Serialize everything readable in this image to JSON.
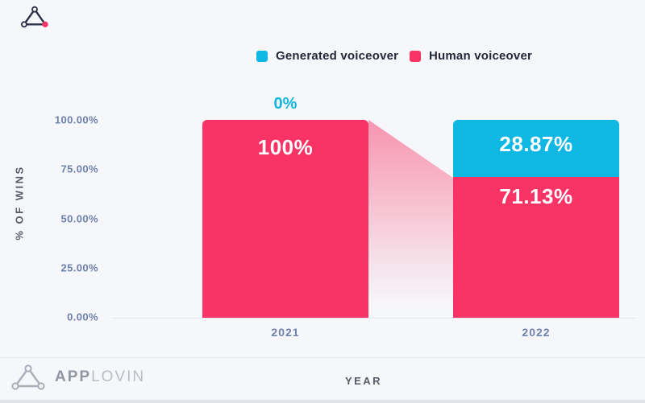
{
  "brand": {
    "footer_word_app": "APP",
    "footer_word_lovin": "LOVIN"
  },
  "legend": [
    {
      "label": "Generated voiceover",
      "color": "#0fb7e3"
    },
    {
      "label": "Human voiceover",
      "color": "#fa3366"
    }
  ],
  "y_axis": {
    "title": "% OF WINS",
    "ticks": [
      "100.00%",
      "75.00%",
      "50.00%",
      "25.00%",
      "0.00%"
    ]
  },
  "x_axis": {
    "title": "YEAR",
    "categories": [
      "2021",
      "2022"
    ]
  },
  "bar_labels": {
    "above_2021": "0%",
    "inside_2021_human": "100%",
    "inside_2022_generated": "28.87%",
    "inside_2022_human": "71.13%"
  },
  "colors": {
    "generated_cyan": "#0fb7e3",
    "human_pink": "#fa3366",
    "axis_label_blue": "#6e81ad",
    "background": "#f6f7fa"
  },
  "chart_data": {
    "type": "bar",
    "subtype": "stacked-percent",
    "categories": [
      "2021",
      "2022"
    ],
    "series": [
      {
        "name": "Generated voiceover",
        "color": "#0fb7e3",
        "values": [
          0,
          28.87
        ]
      },
      {
        "name": "Human voiceover",
        "color": "#fa3366",
        "values": [
          100,
          71.13
        ]
      }
    ],
    "xlabel": "YEAR",
    "ylabel": "% OF WINS",
    "ylim": [
      0,
      100
    ],
    "y_tick_step": 25,
    "grid": false,
    "legend_position": "top-center",
    "annotations": [
      "0% above 2021 bar",
      "connector ribbon fades from 2021 top to 2022 human-segment top"
    ]
  }
}
